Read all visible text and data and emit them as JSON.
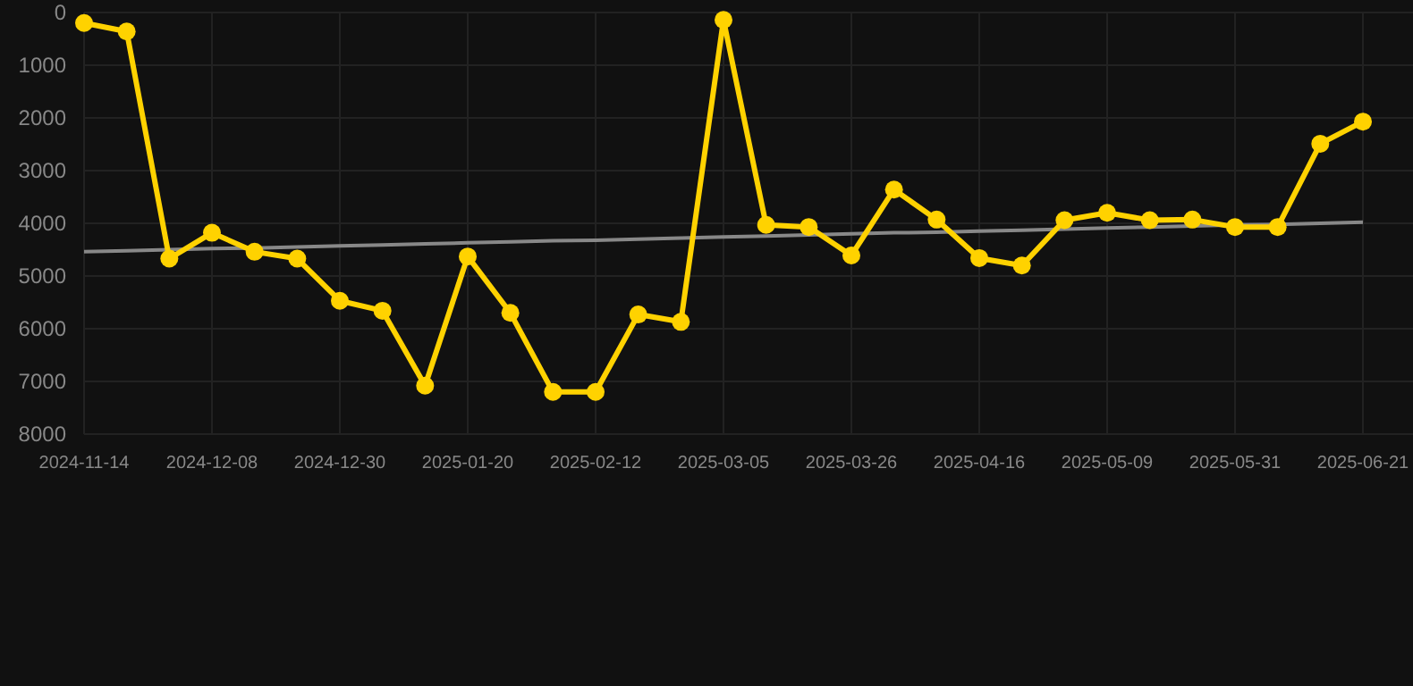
{
  "chart_data": {
    "type": "line",
    "categories": [
      "2024-11-14",
      null,
      null,
      "2024-12-08",
      null,
      null,
      "2024-12-30",
      null,
      null,
      "2025-01-20",
      null,
      null,
      "2025-02-12",
      null,
      null,
      "2025-03-05",
      null,
      null,
      "2025-03-26",
      null,
      null,
      "2025-04-16",
      null,
      null,
      "2025-05-09",
      null,
      null,
      "2025-05-31",
      null,
      null,
      "2025-06-21"
    ],
    "series": [
      {
        "color": "#ffd200",
        "marker": "circle",
        "values": [
          200,
          360,
          4670,
          4180,
          4540,
          4670,
          5470,
          5660,
          7080,
          4630,
          5700,
          7200,
          7200,
          5730,
          5870,
          140,
          4030,
          4070,
          4610,
          3360,
          3930,
          4660,
          4800,
          3940,
          3800,
          3940,
          3930,
          4070,
          4070,
          2490,
          2070
        ]
      },
      {
        "type": "line",
        "color": "#888888",
        "marker": "none",
        "values": [
          4540,
          4520,
          4500,
          4480,
          4470,
          4450,
          4430,
          4410,
          4390,
          4370,
          4350,
          4330,
          4320,
          4300,
          4280,
          4260,
          4240,
          4220,
          4200,
          4180,
          4170,
          4150,
          4130,
          4110,
          4090,
          4070,
          4050,
          4030,
          4020,
          4000,
          3980
        ]
      }
    ],
    "ylim": [
      8000,
      0
    ],
    "yticks": [
      0,
      1000,
      2000,
      3000,
      4000,
      5000,
      6000,
      7000,
      8000
    ],
    "grid": true
  }
}
